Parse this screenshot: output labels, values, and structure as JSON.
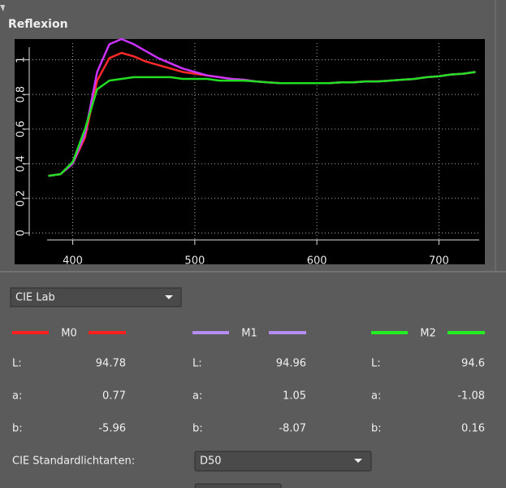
{
  "panel": {
    "title": "Reflexion"
  },
  "chart_data": {
    "type": "line",
    "x": [
      380,
      390,
      400,
      410,
      420,
      430,
      440,
      450,
      460,
      470,
      480,
      490,
      500,
      510,
      520,
      530,
      540,
      550,
      560,
      570,
      580,
      590,
      600,
      610,
      620,
      630,
      640,
      650,
      660,
      670,
      680,
      690,
      700,
      710,
      720,
      730
    ],
    "series": [
      {
        "name": "M0",
        "color": "#ff2a2a",
        "values": [
          0.33,
          0.34,
          0.4,
          0.55,
          0.88,
          1.01,
          1.04,
          1.02,
          0.99,
          0.97,
          0.95,
          0.93,
          0.92,
          0.91,
          0.9,
          0.89,
          0.885,
          0.875,
          0.87,
          0.865,
          0.865,
          0.865,
          0.865,
          0.865,
          0.87,
          0.87,
          0.875,
          0.875,
          0.88,
          0.885,
          0.89,
          0.9,
          0.905,
          0.915,
          0.92,
          0.93
        ]
      },
      {
        "name": "M1",
        "color": "#cc33ff",
        "values": [
          0.33,
          0.34,
          0.4,
          0.57,
          0.93,
          1.09,
          1.12,
          1.09,
          1.05,
          1.01,
          0.98,
          0.95,
          0.93,
          0.91,
          0.9,
          0.89,
          0.885,
          0.875,
          0.87,
          0.865,
          0.865,
          0.865,
          0.865,
          0.865,
          0.87,
          0.87,
          0.875,
          0.875,
          0.88,
          0.885,
          0.89,
          0.9,
          0.905,
          0.915,
          0.92,
          0.93
        ]
      },
      {
        "name": "M2",
        "color": "#22dd22",
        "values": [
          0.33,
          0.34,
          0.41,
          0.6,
          0.83,
          0.88,
          0.89,
          0.9,
          0.9,
          0.9,
          0.9,
          0.89,
          0.89,
          0.89,
          0.88,
          0.88,
          0.88,
          0.875,
          0.87,
          0.865,
          0.865,
          0.865,
          0.865,
          0.865,
          0.87,
          0.87,
          0.875,
          0.875,
          0.88,
          0.885,
          0.89,
          0.9,
          0.905,
          0.915,
          0.92,
          0.93
        ]
      }
    ],
    "xlim": [
      379,
      733
    ],
    "ylim": [
      -0.04,
      1.12
    ],
    "xticks": [
      400,
      500,
      600,
      700
    ],
    "yticks": [
      0,
      {
        "value": 0.2,
        "label": "0,2"
      },
      {
        "value": 0.4,
        "label": "0,4"
      },
      {
        "value": 0.6,
        "label": "0,6"
      },
      {
        "value": 0.8,
        "label": "0,8"
      },
      1
    ],
    "grid": true
  },
  "color_space": {
    "selected": "CIE Lab"
  },
  "fields": [
    "L:",
    "a:",
    "b:"
  ],
  "measurements": [
    {
      "legend_color": "#ff2020",
      "values": [
        94.78,
        0.77,
        -5.96
      ]
    },
    {
      "legend_color": "#b58cf0",
      "values": [
        94.96,
        1.05,
        -8.07
      ]
    },
    {
      "legend_color": "#22ee22",
      "values": [
        94.6,
        -1.08,
        0.16
      ]
    }
  ],
  "illuminant": {
    "label": "CIE Standardlichtarten:",
    "selected": "D50"
  }
}
